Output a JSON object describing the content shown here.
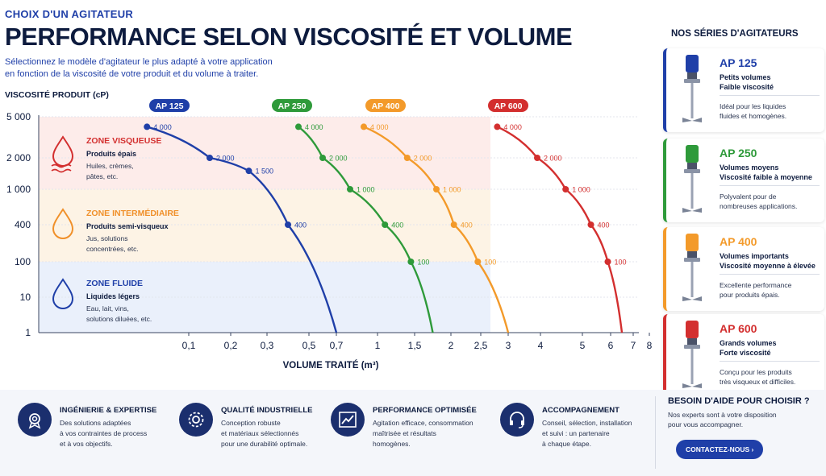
{
  "header": {
    "eyebrow": "CHOIX D'UN AGITATEUR",
    "title": "PERFORMANCE SELON VISCOSITÉ ET VOLUME",
    "subtitle_line1": "Sélectionnez le modèle d'agitateur le plus adapté à votre application",
    "subtitle_line2": "en fonction de la viscosité de votre produit et du volume à traiter."
  },
  "zones": [
    {
      "title": "ZONE VISQUEUSE",
      "subtitle": "Produits épais",
      "desc_line1": "Huiles, crèmes,",
      "desc_line2": "pâtes, etc.",
      "color": "#d32f2f",
      "bg": "#fdecea",
      "icon": "viscous-drop-icon"
    },
    {
      "title": "ZONE INTERMÉDIAIRE",
      "subtitle": "Produits semi-visqueux",
      "desc_line1": "Jus, solutions",
      "desc_line2": "concentrées, etc.",
      "color": "#f0902a",
      "bg": "#fdf3e5",
      "icon": "drop-icon"
    },
    {
      "title": "ZONE FLUIDE",
      "subtitle": "Liquides légers",
      "desc_line1": "Eau, lait, vins,",
      "desc_line2": "solutions diluées, etc.",
      "color": "#1f3fa8",
      "bg": "#eaf0fb",
      "icon": "drop-icon"
    }
  ],
  "chart_data": {
    "type": "line",
    "xlabel": "VOLUME TRAITÉ (m³)",
    "ylabel": "VISCOSITÉ PRODUIT (cP)",
    "y_scale": "log",
    "x_scale": "non-linear (tick-spaced)",
    "y_ticks": [
      1,
      10,
      100,
      400,
      1000,
      2000,
      5000
    ],
    "y_tick_labels": [
      "1",
      "10",
      "100",
      "400",
      "1 000",
      "2 000",
      "5 000"
    ],
    "x_ticks": [
      0.1,
      0.2,
      0.3,
      0.5,
      0.7,
      1,
      1.5,
      2,
      2.5,
      3,
      4,
      5,
      6,
      7,
      8
    ],
    "x_tick_labels": [
      "0,1",
      "0,2",
      "0,3",
      "0,5",
      "0,7",
      "1",
      "1,5",
      "2",
      "2,5",
      "3",
      "4",
      "5",
      "6",
      "7",
      "8"
    ],
    "series": [
      {
        "name": "AP 125",
        "color": "#1f3fa8",
        "points": [
          [
            0.05,
            4000
          ],
          [
            0.15,
            2000
          ],
          [
            0.25,
            1500
          ],
          [
            0.4,
            400
          ],
          [
            0.7,
            1
          ]
        ],
        "point_labels": [
          "4 000",
          "2 000",
          "1 500",
          "400",
          ""
        ]
      },
      {
        "name": "AP 250",
        "color": "#2e9a3a",
        "points": [
          [
            0.45,
            4000
          ],
          [
            0.6,
            2000
          ],
          [
            0.8,
            1000
          ],
          [
            1.1,
            400
          ],
          [
            1.45,
            100
          ],
          [
            1.75,
            1
          ]
        ],
        "point_labels": [
          "4 000",
          "2 000",
          "1 000",
          "400",
          "100",
          ""
        ]
      },
      {
        "name": "AP 400",
        "color": "#f39a2a",
        "points": [
          [
            0.9,
            4000
          ],
          [
            1.4,
            2000
          ],
          [
            1.8,
            1000
          ],
          [
            2.05,
            400
          ],
          [
            2.45,
            100
          ],
          [
            3,
            1
          ]
        ],
        "point_labels": [
          "4 000",
          "2 000",
          "1 000",
          "400",
          "100",
          ""
        ]
      },
      {
        "name": "AP 600",
        "color": "#d32f2f",
        "points": [
          [
            2.8,
            4000
          ],
          [
            3.9,
            2000
          ],
          [
            4.6,
            1000
          ],
          [
            5.3,
            400
          ],
          [
            5.9,
            100
          ],
          [
            6.5,
            1
          ]
        ],
        "point_labels": [
          "4 000",
          "2 000",
          "1 000",
          "400",
          "100",
          ""
        ]
      }
    ]
  },
  "right_panel": {
    "title": "NOS SÉRIES D'AGITATEURS",
    "cards": [
      {
        "name": "AP 125",
        "line1": "Petits volumes",
        "line2": "Faible viscosité",
        "desc_line1": "Idéal pour les liquides",
        "desc_line2": "fluides et homogènes.",
        "color": "#1f3fa8"
      },
      {
        "name": "AP 250",
        "line1": "Volumes moyens",
        "line2": "Viscosité faible à moyenne",
        "desc_line1": "Polyvalent pour de",
        "desc_line2": "nombreuses applications.",
        "color": "#2e9a3a"
      },
      {
        "name": "AP 400",
        "line1": "Volumes importants",
        "line2": "Viscosité moyenne à élevée",
        "desc_line1": "Excellente performance",
        "desc_line2": "pour produits épais.",
        "color": "#f39a2a"
      },
      {
        "name": "AP 600",
        "line1": "Grands volumes",
        "line2": "Forte viscosité",
        "desc_line1": "Conçu pour les produits",
        "desc_line2": "très visqueux et difficiles.",
        "color": "#d32f2f"
      }
    ]
  },
  "features": [
    {
      "title": "INGÉNIERIE & EXPERTISE",
      "line1": "Des solutions adaptées",
      "line2": "à vos contraintes de process",
      "line3": "et à vos objectifs.",
      "icon": "badge-gear-icon"
    },
    {
      "title": "QUALITÉ INDUSTRIELLE",
      "line1": "Conception robuste",
      "line2": "et matériaux sélectionnés",
      "line3": "pour une durabilité optimale.",
      "icon": "gear-icon"
    },
    {
      "title": "PERFORMANCE OPTIMISÉE",
      "line1": "Agitation efficace, consommation",
      "line2": "maîtrisée et résultats",
      "line3": "homogènes.",
      "icon": "trend-chart-icon"
    },
    {
      "title": "ACCOMPAGNEMENT",
      "line1": "Conseil, sélection, installation",
      "line2": "et suivi : un partenaire",
      "line3": "à chaque étape.",
      "icon": "headset-icon"
    }
  ],
  "help": {
    "title": "BESOIN D'AIDE POUR CHOISIR ?",
    "line1": "Nos experts sont à votre disposition",
    "line2": "pour vous accompagner.",
    "button": "CONTACTEZ-NOUS ›"
  }
}
